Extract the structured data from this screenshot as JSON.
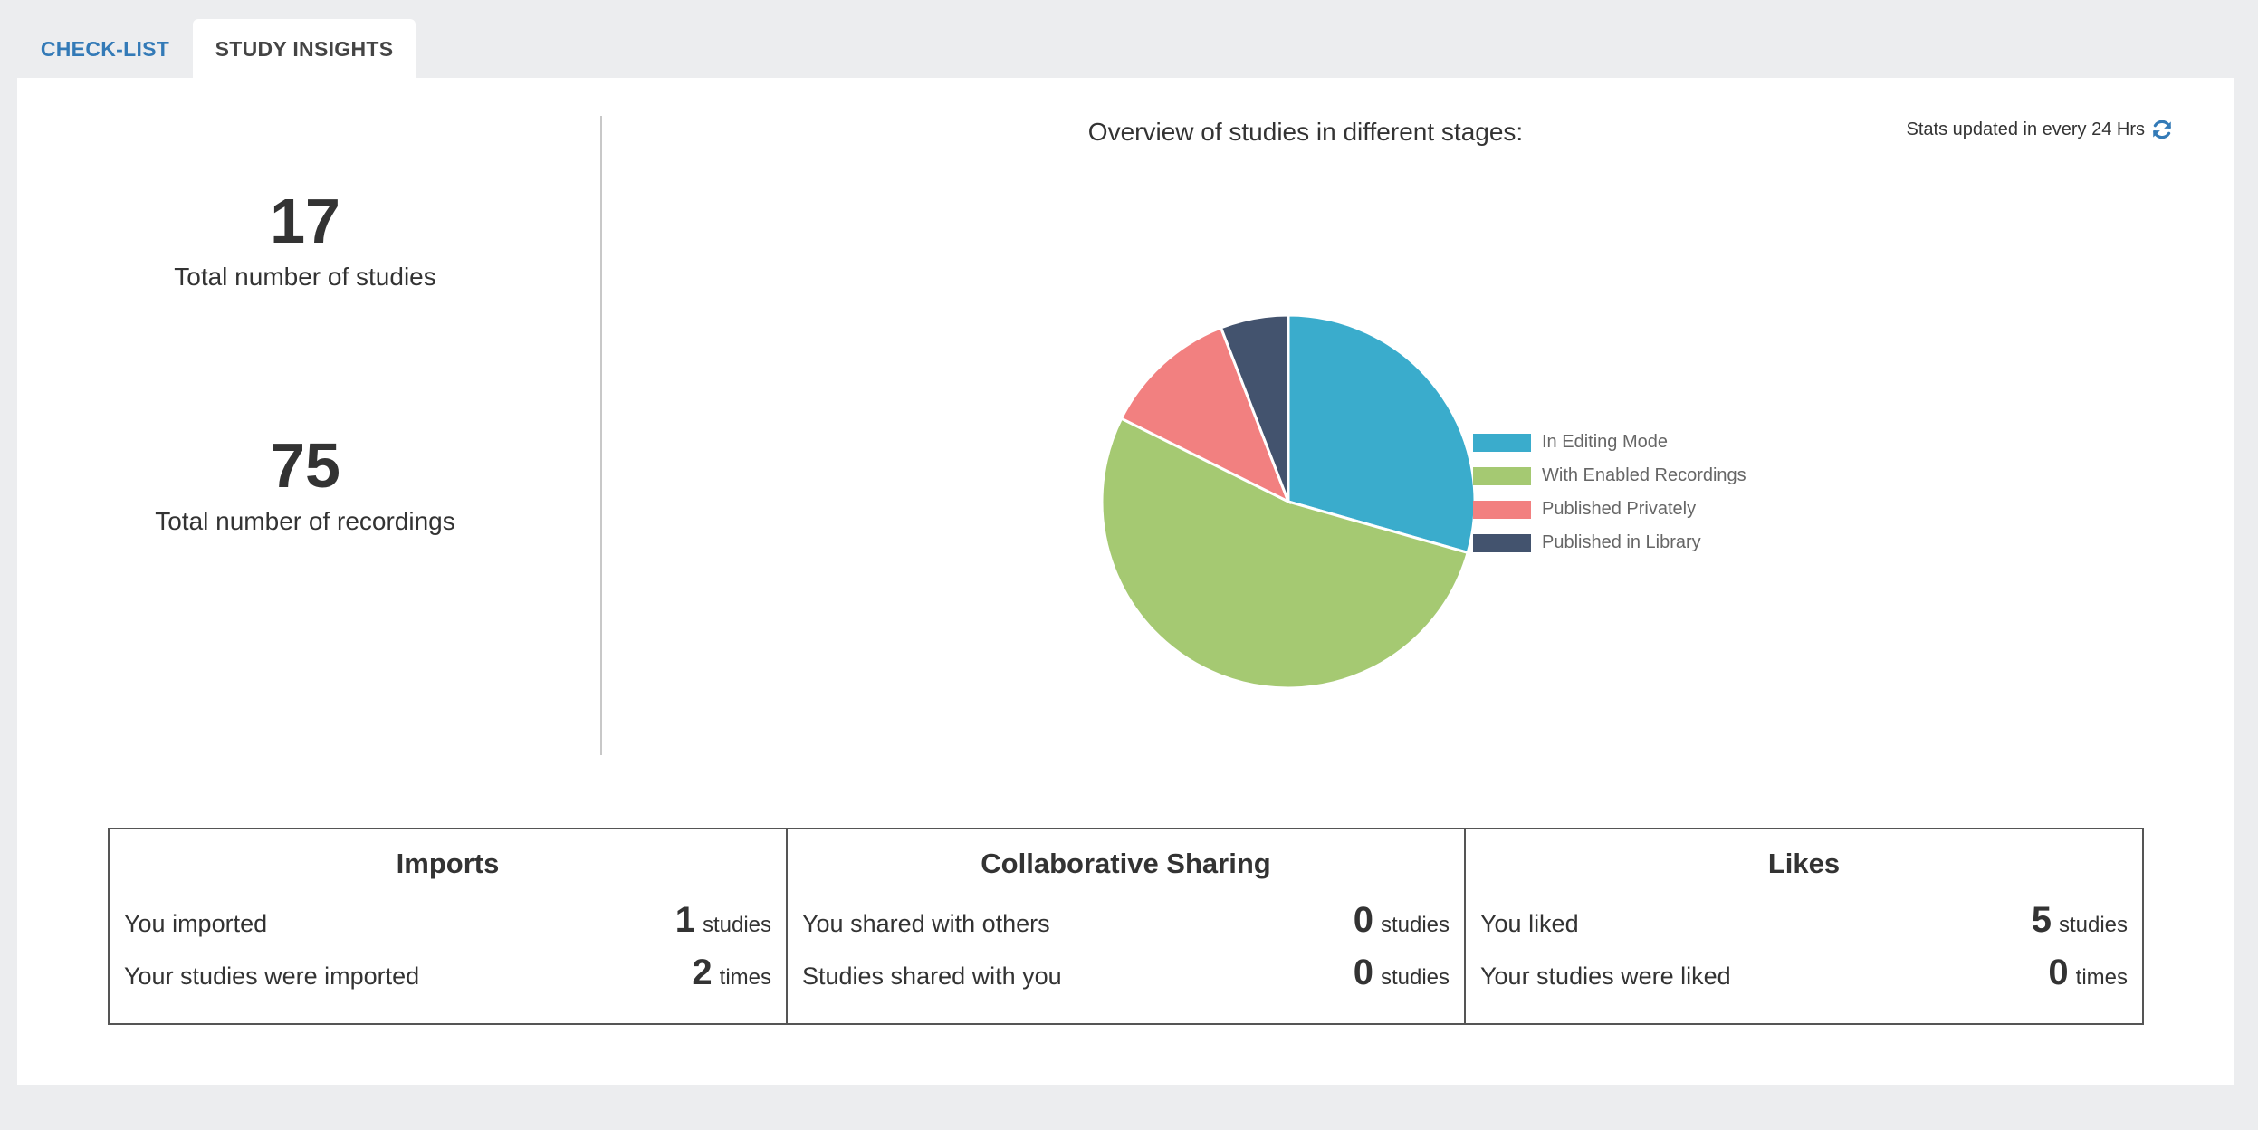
{
  "tabs": [
    {
      "label": "CHECK-LIST",
      "active": false
    },
    {
      "label": "STUDY INSIGHTS",
      "active": true
    }
  ],
  "stats": {
    "total_studies": {
      "value": "17",
      "label": "Total number of studies"
    },
    "total_recordings": {
      "value": "75",
      "label": "Total number of recordings"
    }
  },
  "chart_header": {
    "title": "Overview of studies in different stages:",
    "updated_text": "Stats updated in every 24 Hrs",
    "refresh_icon": "refresh-icon",
    "accent_color": "#337ab7"
  },
  "chart_data": {
    "type": "pie",
    "title": "Overview of studies in different stages:",
    "categories": [
      "In Editing Mode",
      "With Enabled Recordings",
      "Published Privately",
      "Published in Library"
    ],
    "values": [
      5,
      9,
      2,
      1
    ],
    "colors": [
      "#3aaccc",
      "#a5c972",
      "#f28080",
      "#43536e"
    ],
    "legend": "right"
  },
  "summary": [
    {
      "title": "Imports",
      "rows": [
        {
          "desc": "You imported",
          "value": "1",
          "unit": "studies"
        },
        {
          "desc": "Your studies were imported",
          "value": "2",
          "unit": "times"
        }
      ]
    },
    {
      "title": "Collaborative Sharing",
      "rows": [
        {
          "desc": "You shared with others",
          "value": "0",
          "unit": "studies"
        },
        {
          "desc": "Studies shared with you",
          "value": "0",
          "unit": "studies"
        }
      ]
    },
    {
      "title": "Likes",
      "rows": [
        {
          "desc": "You liked",
          "value": "5",
          "unit": "studies"
        },
        {
          "desc": "Your studies were liked",
          "value": "0",
          "unit": "times"
        }
      ]
    }
  ]
}
